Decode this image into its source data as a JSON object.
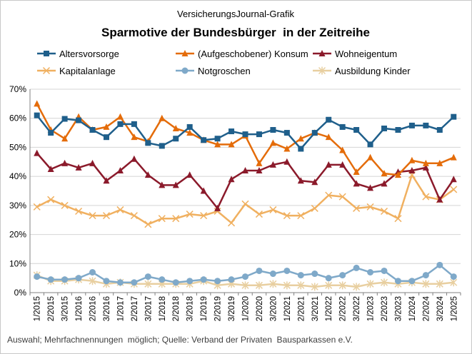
{
  "chart_data": {
    "type": "line",
    "source_label": "VersicherungsJournal-Grafik",
    "title": "Sparmotive der Bundesbürger  in der Zeitreihe",
    "footnote": "Auswahl; Mehrfachnennungen  möglich; Quelle: Verband der Privaten  Bausparkassen e.V.",
    "x": [
      "1/2015",
      "2/2015",
      "3/2015",
      "1/2016",
      "2/2016",
      "3/2016",
      "1/2017",
      "2/2017",
      "3/2017",
      "1/2018",
      "2/2018",
      "3/2018",
      "1/2019",
      "2/2019",
      "3/2019",
      "1/2020",
      "2/2020",
      "3/2020",
      "1/2021",
      "2/2021",
      "3/2021",
      "1/2022",
      "2/2022",
      "3/2022",
      "1/2023",
      "2/2023",
      "3/2023",
      "1/2024",
      "2/2024",
      "3/2024",
      "1/2025"
    ],
    "ylim": [
      0,
      70
    ],
    "yticks": [
      "0%",
      "10%",
      "20%",
      "30%",
      "40%",
      "50%",
      "60%",
      "70%"
    ],
    "series": [
      {
        "name": "Altersvorsorge",
        "color": "#1f5f8b",
        "marker": "square",
        "values": [
          61,
          55,
          59.8,
          59.3,
          56,
          53.5,
          58,
          58,
          51.5,
          50.5,
          53,
          57,
          52.5,
          53,
          55.5,
          54.5,
          54.5,
          56,
          55,
          49.5,
          55,
          59.5,
          57,
          56,
          51,
          56.5,
          56,
          57.5,
          57.5,
          56,
          60.5
        ]
      },
      {
        "name": "(Aufgeschobener) Konsum",
        "color": "#e46c0a",
        "marker": "triangle",
        "values": [
          65,
          56,
          53,
          60.5,
          56,
          57,
          60.5,
          53.5,
          52,
          60,
          56.5,
          55,
          52.5,
          51,
          51,
          54,
          44.5,
          51.5,
          49.5,
          53,
          55,
          53.5,
          49,
          41.5,
          46.5,
          41,
          40.5,
          45.5,
          44.5,
          44.5,
          46.5
        ]
      },
      {
        "name": "Wohneigentum",
        "color": "#8b1a2b",
        "marker": "triangle",
        "values": [
          48,
          42.5,
          44.5,
          43,
          44.5,
          38.5,
          42,
          46,
          40.5,
          37,
          37,
          40.5,
          35,
          29,
          39,
          42,
          42,
          44,
          45,
          38.5,
          38,
          44,
          44,
          37.5,
          36,
          37.5,
          41.5,
          42,
          43,
          32,
          39
        ]
      },
      {
        "name": "Kapitalanlage",
        "color": "#f0b060",
        "marker": "x",
        "values": [
          29.5,
          32,
          30,
          28,
          26.5,
          26.5,
          28.5,
          26.5,
          23.5,
          25.5,
          25.5,
          27,
          26.5,
          28,
          24,
          30.5,
          27,
          28.5,
          26.5,
          26.5,
          29,
          33.5,
          33,
          29,
          29.5,
          28,
          25.5,
          40.5,
          33,
          32,
          35.5
        ]
      },
      {
        "name": "Notgroschen",
        "color": "#7fa9c9",
        "marker": "circle",
        "values": [
          5.5,
          4.5,
          4.5,
          5,
          7,
          4,
          3.5,
          3.5,
          5.5,
          4.5,
          3.5,
          4,
          4.5,
          4,
          4.5,
          5.5,
          7.5,
          6.5,
          7.5,
          6,
          6.5,
          5,
          6,
          8.5,
          7,
          7.5,
          4,
          4,
          6,
          9.5,
          5.5
        ]
      },
      {
        "name": "Ausbildung Kinder",
        "color": "#e8cfa0",
        "marker": "asterisk",
        "values": [
          6,
          4,
          4,
          4.5,
          4,
          3,
          3.5,
          3,
          3,
          3,
          3,
          3,
          4,
          2.5,
          3,
          2.5,
          2.5,
          3,
          2.5,
          2.5,
          2,
          2.5,
          2.5,
          2,
          3,
          3.5,
          3,
          3.5,
          3,
          3,
          3.5
        ]
      }
    ]
  }
}
